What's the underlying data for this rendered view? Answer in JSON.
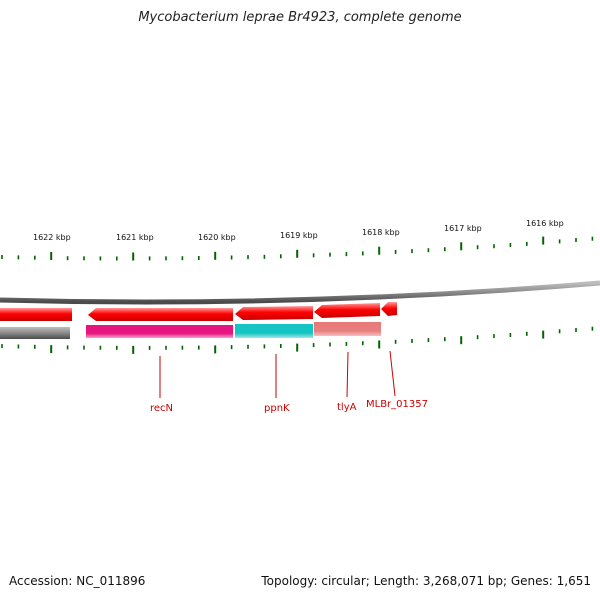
{
  "title": "Mycobacterium leprae Br4923, complete genome",
  "footer": {
    "accession": "Accession: NC_011896",
    "summary": "Topology: circular; Length: 3,268,071 bp; Genes: 1,651"
  },
  "ruler": {
    "tick_labels": [
      "1622 kbp",
      "1621 kbp",
      "1620 kbp",
      "1619 kbp",
      "1618 kbp",
      "1617 kbp",
      "1616 kbp"
    ],
    "tick_color": "#006400"
  },
  "genes": [
    {
      "name": "recN",
      "color": "#e6157f"
    },
    {
      "name": "ppnK",
      "color": "#17c4c4"
    },
    {
      "name": "tlyA",
      "color": "#e88080"
    },
    {
      "name": "MLBr_01357",
      "color": "#ff0000"
    }
  ],
  "colors": {
    "arrow": "#ff0000",
    "label": "#cc0000",
    "backbone": "#888888"
  }
}
